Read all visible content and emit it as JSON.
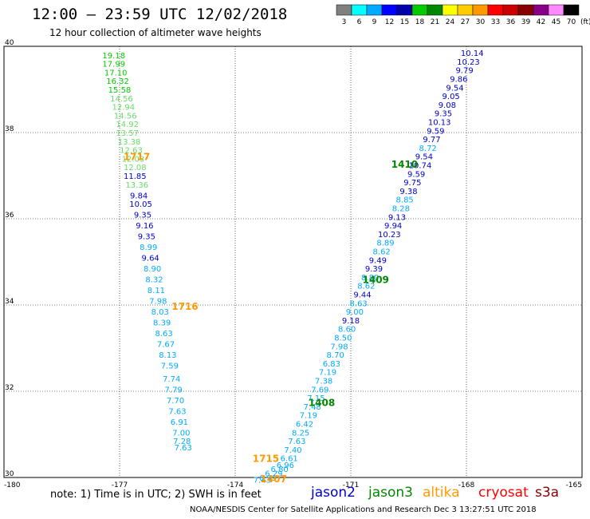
{
  "title": "12:00 — 23:59 UTC 12/02/2018",
  "subtitle": "12 hour collection of altimeter wave heights",
  "note": "note: 1) Time is in UTC; 2) SWH is in feet",
  "credit": "NOAA/NESDIS Center for Satellite Applications and Research   Dec  3 13:27:51 UTC 2018",
  "satellites": [
    {
      "name": "jason2",
      "color": "#0000cc"
    },
    {
      "name": "jason3",
      "color": "#008800"
    },
    {
      "name": "altika",
      "color": "#ff9900"
    },
    {
      "name": "cryosat",
      "color": "#ff0000"
    },
    {
      "name": "s3a",
      "color": "#880000"
    }
  ],
  "scale": {
    "unit": "(ft)",
    "values": [
      "3",
      "6",
      "9",
      "12",
      "15",
      "18",
      "21",
      "24",
      "27",
      "30",
      "33",
      "36",
      "39",
      "42",
      "45",
      "70"
    ],
    "colors": [
      "#808080",
      "#00ffff",
      "#00aaff",
      "#0000ff",
      "#0000aa",
      "#00cc00",
      "#008800",
      "#ffff00",
      "#ffcc00",
      "#ff9900",
      "#ff0000",
      "#cc0000",
      "#880000",
      "#880088",
      "#ff88ff",
      "#000000"
    ]
  },
  "chart_data": {
    "type": "scatter",
    "xlim": [
      -180,
      -165
    ],
    "ylim": [
      30,
      40
    ],
    "x_ticks": [
      "-180",
      "-177",
      "-174",
      "-171",
      "-168",
      "-165"
    ],
    "y_ticks": [
      "40",
      "38",
      "36",
      "34",
      "32",
      "30"
    ],
    "grid": true,
    "track_labels": [
      {
        "text": "1717",
        "lon": -176.9,
        "lat": 37.45,
        "color": "#ff9900"
      },
      {
        "text": "1716",
        "lon": -175.65,
        "lat": 33.98,
        "color": "#ff9900"
      },
      {
        "text": "1715",
        "lon": -173.55,
        "lat": 30.45,
        "color": "#ff9900"
      },
      {
        "text": "1407",
        "lon": -173.35,
        "lat": 29.98,
        "color": "#ff9900"
      },
      {
        "text": "1410",
        "lon": -169.95,
        "lat": 37.28,
        "color": "#008800"
      },
      {
        "text": "1409",
        "lon": -170.7,
        "lat": 34.6,
        "color": "#008800"
      },
      {
        "text": "1408",
        "lon": -172.1,
        "lat": 31.75,
        "color": "#008800"
      }
    ],
    "series": [
      {
        "track": "1717",
        "points": [
          {
            "v": "19.18",
            "lon": -177.15,
            "lat": 39.8,
            "c": "#00cc00"
          },
          {
            "v": "17.99",
            "lon": -177.15,
            "lat": 39.6,
            "c": "#00cc00"
          },
          {
            "v": "17.10",
            "lon": -177.1,
            "lat": 39.4,
            "c": "#00cc00"
          },
          {
            "v": "16.32",
            "lon": -177.05,
            "lat": 39.2,
            "c": "#00cc00"
          },
          {
            "v": "15.58",
            "lon": -177.0,
            "lat": 39.0,
            "c": "#00cc00"
          },
          {
            "v": "14.56",
            "lon": -176.95,
            "lat": 38.8,
            "c": "#66dd66"
          },
          {
            "v": "12.94",
            "lon": -176.9,
            "lat": 38.6,
            "c": "#66dd66"
          },
          {
            "v": "14.56",
            "lon": -176.85,
            "lat": 38.4,
            "c": "#66dd66"
          },
          {
            "v": "14.92",
            "lon": -176.8,
            "lat": 38.2,
            "c": "#66dd66"
          },
          {
            "v": "13.57",
            "lon": -176.8,
            "lat": 38.0,
            "c": "#66dd66"
          },
          {
            "v": "13.38",
            "lon": -176.75,
            "lat": 37.8,
            "c": "#66dd66"
          },
          {
            "v": "12.63",
            "lon": -176.7,
            "lat": 37.6,
            "c": "#66dd66"
          },
          {
            "v": "12.03",
            "lon": -176.65,
            "lat": 37.4,
            "c": "#66dd66"
          },
          {
            "v": "12.08",
            "lon": -176.6,
            "lat": 37.2,
            "c": "#66dd66"
          },
          {
            "v": "11.85",
            "lon": -176.6,
            "lat": 37.0,
            "c": "#0000cc"
          },
          {
            "v": "13.36",
            "lon": -176.55,
            "lat": 36.8,
            "c": "#66dd66"
          },
          {
            "v": "9.84",
            "lon": -176.5,
            "lat": 36.55,
            "c": "#0000cc"
          },
          {
            "v": "10.05",
            "lon": -176.45,
            "lat": 36.35,
            "c": "#0000cc"
          },
          {
            "v": "9.35",
            "lon": -176.4,
            "lat": 36.1,
            "c": "#0000cc"
          },
          {
            "v": "9.16",
            "lon": -176.35,
            "lat": 35.85,
            "c": "#0000cc"
          },
          {
            "v": "9.35",
            "lon": -176.3,
            "lat": 35.6,
            "c": "#0000cc"
          },
          {
            "v": "8.99",
            "lon": -176.25,
            "lat": 35.35,
            "c": "#00aaff"
          },
          {
            "v": "9.64",
            "lon": -176.2,
            "lat": 35.1,
            "c": "#0000cc"
          },
          {
            "v": "8.90",
            "lon": -176.15,
            "lat": 34.85,
            "c": "#00aaff"
          },
          {
            "v": "8.32",
            "lon": -176.1,
            "lat": 34.6,
            "c": "#00aaff"
          },
          {
            "v": "8.11",
            "lon": -176.05,
            "lat": 34.35,
            "c": "#00aaff"
          },
          {
            "v": "7.98",
            "lon": -176.0,
            "lat": 34.1,
            "c": "#00aaff"
          },
          {
            "v": "8.03",
            "lon": -175.95,
            "lat": 33.85,
            "c": "#00aaff"
          },
          {
            "v": "8.39",
            "lon": -175.9,
            "lat": 33.6,
            "c": "#00aaff"
          },
          {
            "v": "8.63",
            "lon": -175.85,
            "lat": 33.35,
            "c": "#00aaff"
          },
          {
            "v": "7.67",
            "lon": -175.8,
            "lat": 33.1,
            "c": "#00aaff"
          },
          {
            "v": "8.13",
            "lon": -175.75,
            "lat": 32.85,
            "c": "#00aaff"
          },
          {
            "v": "7.59",
            "lon": -175.7,
            "lat": 32.6,
            "c": "#00aaff"
          },
          {
            "v": "7.74",
            "lon": -175.65,
            "lat": 32.3,
            "c": "#00aaff"
          },
          {
            "v": "7.79",
            "lon": -175.6,
            "lat": 32.05,
            "c": "#00aaff"
          },
          {
            "v": "7.70",
            "lon": -175.55,
            "lat": 31.8,
            "c": "#00aaff"
          },
          {
            "v": "7.63",
            "lon": -175.5,
            "lat": 31.55,
            "c": "#00aaff"
          },
          {
            "v": "6.91",
            "lon": -175.45,
            "lat": 31.3,
            "c": "#00aaff"
          },
          {
            "v": "7.00",
            "lon": -175.4,
            "lat": 31.05,
            "c": "#00aaff"
          },
          {
            "v": "7.28",
            "lon": -175.38,
            "lat": 30.85,
            "c": "#00aaff"
          },
          {
            "v": "7.63",
            "lon": -175.35,
            "lat": 30.7,
            "c": "#00aaff"
          }
        ]
      },
      {
        "track": "1407",
        "points": [
          {
            "v": "10.14",
            "lon": -167.85,
            "lat": 39.85,
            "c": "#0000cc"
          },
          {
            "v": "10.23",
            "lon": -167.95,
            "lat": 39.65,
            "c": "#0000cc"
          },
          {
            "v": "9.79",
            "lon": -168.05,
            "lat": 39.45,
            "c": "#0000cc"
          },
          {
            "v": "9.86",
            "lon": -168.2,
            "lat": 39.25,
            "c": "#0000cc"
          },
          {
            "v": "9.54",
            "lon": -168.3,
            "lat": 39.05,
            "c": "#0000cc"
          },
          {
            "v": "9.05",
            "lon": -168.4,
            "lat": 38.85,
            "c": "#0000cc"
          },
          {
            "v": "9.08",
            "lon": -168.5,
            "lat": 38.65,
            "c": "#0000cc"
          },
          {
            "v": "9.35",
            "lon": -168.6,
            "lat": 38.45,
            "c": "#0000cc"
          },
          {
            "v": "10.13",
            "lon": -168.7,
            "lat": 38.25,
            "c": "#0000cc"
          },
          {
            "v": "9.59",
            "lon": -168.8,
            "lat": 38.05,
            "c": "#0000cc"
          },
          {
            "v": "9.77",
            "lon": -168.9,
            "lat": 37.85,
            "c": "#0000cc"
          },
          {
            "v": "8.72",
            "lon": -169.0,
            "lat": 37.65,
            "c": "#00aaff"
          },
          {
            "v": "9.54",
            "lon": -169.1,
            "lat": 37.45,
            "c": "#0000cc"
          },
          {
            "v": "10.74",
            "lon": -169.2,
            "lat": 37.25,
            "c": "#0000cc"
          },
          {
            "v": "9.59",
            "lon": -169.3,
            "lat": 37.05,
            "c": "#0000cc"
          },
          {
            "v": "9.75",
            "lon": -169.4,
            "lat": 36.85,
            "c": "#0000cc"
          },
          {
            "v": "9.38",
            "lon": -169.5,
            "lat": 36.65,
            "c": "#0000cc"
          },
          {
            "v": "8.85",
            "lon": -169.6,
            "lat": 36.45,
            "c": "#00aaff"
          },
          {
            "v": "8.28",
            "lon": -169.7,
            "lat": 36.25,
            "c": "#00aaff"
          },
          {
            "v": "9.13",
            "lon": -169.8,
            "lat": 36.05,
            "c": "#0000cc"
          },
          {
            "v": "9.94",
            "lon": -169.9,
            "lat": 35.85,
            "c": "#0000cc"
          },
          {
            "v": "10.23",
            "lon": -170.0,
            "lat": 35.65,
            "c": "#0000cc"
          },
          {
            "v": "8.89",
            "lon": -170.1,
            "lat": 35.45,
            "c": "#00aaff"
          },
          {
            "v": "8.62",
            "lon": -170.2,
            "lat": 35.25,
            "c": "#00aaff"
          },
          {
            "v": "9.49",
            "lon": -170.3,
            "lat": 35.05,
            "c": "#0000cc"
          },
          {
            "v": "9.39",
            "lon": -170.4,
            "lat": 34.85,
            "c": "#0000cc"
          },
          {
            "v": "8.80",
            "lon": -170.5,
            "lat": 34.65,
            "c": "#00aaff"
          },
          {
            "v": "8.62",
            "lon": -170.6,
            "lat": 34.45,
            "c": "#00aaff"
          },
          {
            "v": "9.44",
            "lon": -170.7,
            "lat": 34.25,
            "c": "#0000cc"
          },
          {
            "v": "8.63",
            "lon": -170.8,
            "lat": 34.05,
            "c": "#00aaff"
          },
          {
            "v": "9.00",
            "lon": -170.9,
            "lat": 33.85,
            "c": "#00aaff"
          },
          {
            "v": "9.18",
            "lon": -171.0,
            "lat": 33.65,
            "c": "#0000cc"
          },
          {
            "v": "8.60",
            "lon": -171.1,
            "lat": 33.45,
            "c": "#00aaff"
          },
          {
            "v": "8.50",
            "lon": -171.2,
            "lat": 33.25,
            "c": "#00aaff"
          },
          {
            "v": "7.98",
            "lon": -171.3,
            "lat": 33.05,
            "c": "#00aaff"
          },
          {
            "v": "8.70",
            "lon": -171.4,
            "lat": 32.85,
            "c": "#00aaff"
          },
          {
            "v": "6.83",
            "lon": -171.5,
            "lat": 32.65,
            "c": "#00aaff"
          },
          {
            "v": "7.19",
            "lon": -171.6,
            "lat": 32.45,
            "c": "#00aaff"
          },
          {
            "v": "7.38",
            "lon": -171.7,
            "lat": 32.25,
            "c": "#00aaff"
          },
          {
            "v": "7.69",
            "lon": -171.8,
            "lat": 32.05,
            "c": "#00aaff"
          },
          {
            "v": "7.15",
            "lon": -171.9,
            "lat": 31.85,
            "c": "#00aaff"
          },
          {
            "v": "7.48",
            "lon": -172.0,
            "lat": 31.65,
            "c": "#00aaff"
          },
          {
            "v": "7.19",
            "lon": -172.1,
            "lat": 31.45,
            "c": "#00aaff"
          },
          {
            "v": "6.42",
            "lon": -172.2,
            "lat": 31.25,
            "c": "#00aaff"
          },
          {
            "v": "8.25",
            "lon": -172.3,
            "lat": 31.05,
            "c": "#00aaff"
          },
          {
            "v": "7.63",
            "lon": -172.4,
            "lat": 30.85,
            "c": "#00aaff"
          },
          {
            "v": "7.40",
            "lon": -172.5,
            "lat": 30.65,
            "c": "#00aaff"
          },
          {
            "v": "6.61",
            "lon": -172.6,
            "lat": 30.45,
            "c": "#00aaff"
          },
          {
            "v": "6.96",
            "lon": -172.7,
            "lat": 30.3,
            "c": "#00aaff"
          },
          {
            "v": "6.80",
            "lon": -172.85,
            "lat": 30.2,
            "c": "#00aaff"
          },
          {
            "v": "6.29",
            "lon": -173.0,
            "lat": 30.1,
            "c": "#00aaff"
          },
          {
            "v": "6.99",
            "lon": -173.15,
            "lat": 30.0,
            "c": "#00aaff"
          },
          {
            "v": "7.43",
            "lon": -173.3,
            "lat": 29.95,
            "c": "#00aaff"
          }
        ]
      }
    ]
  }
}
